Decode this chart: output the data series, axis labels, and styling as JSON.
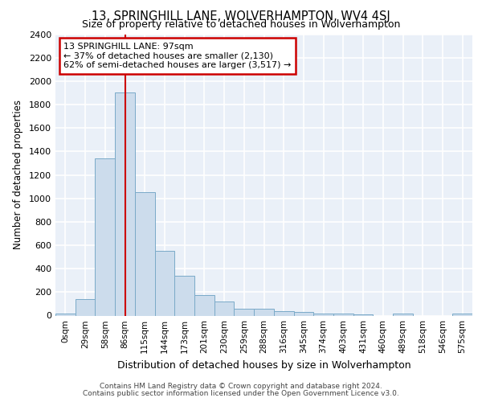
{
  "title1": "13, SPRINGHILL LANE, WOLVERHAMPTON, WV4 4SJ",
  "title2": "Size of property relative to detached houses in Wolverhampton",
  "xlabel": "Distribution of detached houses by size in Wolverhampton",
  "ylabel": "Number of detached properties",
  "bin_labels": [
    "0sqm",
    "29sqm",
    "58sqm",
    "86sqm",
    "115sqm",
    "144sqm",
    "173sqm",
    "201sqm",
    "230sqm",
    "259sqm",
    "288sqm",
    "316sqm",
    "345sqm",
    "374sqm",
    "403sqm",
    "431sqm",
    "460sqm",
    "489sqm",
    "518sqm",
    "546sqm",
    "575sqm"
  ],
  "bar_heights": [
    20,
    140,
    1340,
    1900,
    1050,
    550,
    340,
    175,
    120,
    60,
    60,
    35,
    30,
    20,
    15,
    10,
    0,
    15,
    0,
    0,
    20
  ],
  "bar_color": "#ccdcec",
  "bar_edge_color": "#7aaac8",
  "background_color": "#eaf0f8",
  "grid_color": "#ffffff",
  "red_line_x": 3.0,
  "annotation_line1": "13 SPRINGHILL LANE: 97sqm",
  "annotation_line2": "← 37% of detached houses are smaller (2,130)",
  "annotation_line3": "62% of semi-detached houses are larger (3,517) →",
  "annotation_box_color": "#ffffff",
  "annotation_box_edge_color": "#cc0000",
  "ylim": [
    0,
    2400
  ],
  "yticks": [
    0,
    200,
    400,
    600,
    800,
    1000,
    1200,
    1400,
    1600,
    1800,
    2000,
    2200,
    2400
  ],
  "footnote1": "Contains HM Land Registry data © Crown copyright and database right 2024.",
  "footnote2": "Contains public sector information licensed under the Open Government Licence v3.0."
}
